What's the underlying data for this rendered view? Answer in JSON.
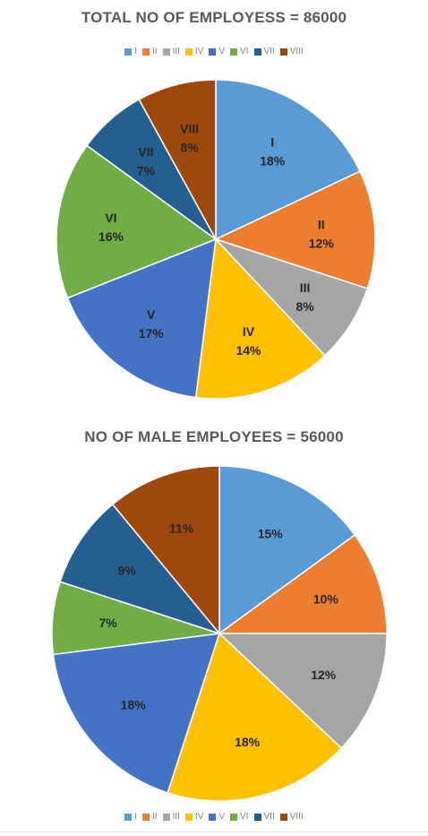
{
  "chart_data": [
    {
      "type": "pie",
      "title": "TOTAL NO OF EMPLOYESS  = 86000",
      "categories": [
        "I",
        "II",
        "III",
        "IV",
        "V",
        "VI",
        "VII",
        "VIII"
      ],
      "values": [
        18,
        12,
        8,
        14,
        17,
        16,
        7,
        8
      ],
      "value_labels": [
        "18%",
        "12%",
        "8%",
        "14%",
        "17%",
        "16%",
        "7%",
        "8%"
      ],
      "show_category_labels": true,
      "legend": "top",
      "colors": [
        "#5b9bd5",
        "#ed7d31",
        "#a5a5a5",
        "#ffc000",
        "#4472c4",
        "#70ad47",
        "#255e91",
        "#9e480e"
      ]
    },
    {
      "type": "pie",
      "title": "NO OF MALE EMPLOYEES = 56000",
      "categories": [
        "I",
        "II",
        "III",
        "IV",
        "V",
        "VI",
        "VII",
        "VIII"
      ],
      "values": [
        15,
        10,
        12,
        18,
        18,
        7,
        9,
        11
      ],
      "value_labels": [
        "15%",
        "10%",
        "12%",
        "18%",
        "18%",
        "7%",
        "9%",
        "11%"
      ],
      "show_category_labels": false,
      "legend": "bottom",
      "colors": [
        "#5b9bd5",
        "#ed7d31",
        "#a5a5a5",
        "#ffc000",
        "#4472c4",
        "#70ad47",
        "#255e91",
        "#9e480e"
      ]
    }
  ]
}
